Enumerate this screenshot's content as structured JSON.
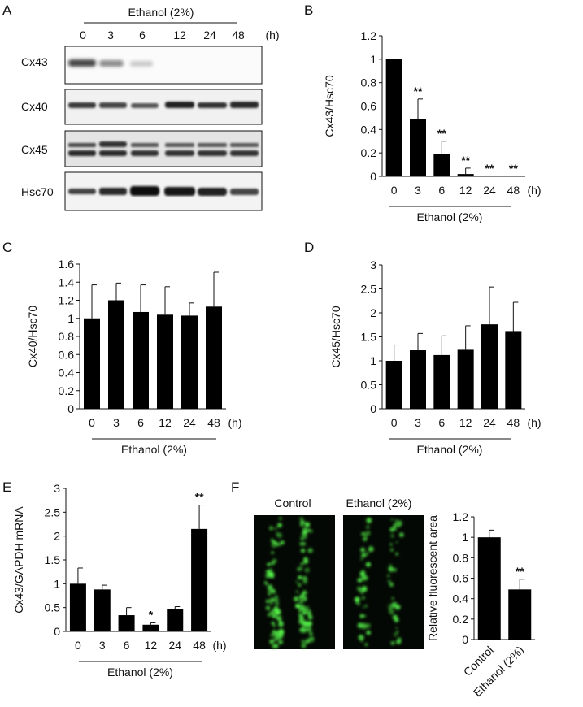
{
  "panels": {
    "A": "A",
    "B": "B",
    "C": "C",
    "D": "D",
    "E": "E",
    "F": "F"
  },
  "panelA": {
    "treatment": "Ethanol (2%)",
    "lanes": [
      "0",
      "3",
      "6",
      "12",
      "24",
      "48"
    ],
    "unit": "(h)",
    "rows": [
      "Cx43",
      "Cx40",
      "Cx45",
      "Hsc70"
    ]
  },
  "panelF": {
    "image_labels": [
      "Control",
      "Ethanol (2%)"
    ]
  },
  "chart_data": [
    {
      "id": "B",
      "type": "bar",
      "categories": [
        "0",
        "3",
        "6",
        "12",
        "24",
        "48"
      ],
      "x_unit": "(h)",
      "group_label": "Ethanol (2%)",
      "values": [
        1,
        0.49,
        0.19,
        0.02,
        0,
        0
      ],
      "errors": [
        0,
        0.17,
        0.11,
        0.05,
        0,
        0
      ],
      "significance": [
        "",
        "**",
        "**",
        "**",
        "**",
        "**"
      ],
      "ylabel": "Cx43/Hsc70",
      "ylim": [
        0,
        1.2
      ],
      "yticks": [
        "0",
        "0.2",
        "0.4",
        "0.6",
        "0.8",
        "1",
        "1.2"
      ]
    },
    {
      "id": "C",
      "type": "bar",
      "categories": [
        "0",
        "3",
        "6",
        "12",
        "24",
        "48"
      ],
      "x_unit": "(h)",
      "group_label": "Ethanol (2%)",
      "values": [
        1.0,
        1.2,
        1.07,
        1.04,
        1.03,
        1.13
      ],
      "errors": [
        0.37,
        0.19,
        0.3,
        0.31,
        0.14,
        0.38
      ],
      "significance": [
        "",
        "",
        "",
        "",
        "",
        ""
      ],
      "ylabel": "Cx40/Hsc70",
      "ylim": [
        0,
        1.6
      ],
      "yticks": [
        "0",
        "0.2",
        "0.4",
        "0.6",
        "0.8",
        "1",
        "1.2",
        "1.4",
        "1.6"
      ]
    },
    {
      "id": "D",
      "type": "bar",
      "categories": [
        "0",
        "3",
        "6",
        "12",
        "24",
        "48"
      ],
      "x_unit": "(h)",
      "group_label": "Ethanol (2%)",
      "values": [
        1.0,
        1.22,
        1.12,
        1.23,
        1.76,
        1.62
      ],
      "errors": [
        0.33,
        0.35,
        0.4,
        0.5,
        0.78,
        0.6
      ],
      "significance": [
        "",
        "",
        "",
        "",
        "",
        ""
      ],
      "ylabel": "Cx45/Hsc70",
      "ylim": [
        0,
        3
      ],
      "yticks": [
        "0",
        "0.5",
        "1",
        "1.5",
        "2",
        "2.5",
        "3"
      ]
    },
    {
      "id": "E",
      "type": "bar",
      "categories": [
        "0",
        "3",
        "6",
        "12",
        "24",
        "48"
      ],
      "x_unit": "(h)",
      "group_label": "Ethanol (2%)",
      "values": [
        1.0,
        0.88,
        0.34,
        0.14,
        0.46,
        2.15
      ],
      "errors": [
        0.33,
        0.09,
        0.16,
        0.04,
        0.06,
        0.5
      ],
      "significance": [
        "",
        "",
        "",
        "*",
        "",
        "**"
      ],
      "ylabel": "Cx43/GAPDH mRNA",
      "ylim": [
        0,
        3
      ],
      "yticks": [
        "0",
        "0.5",
        "1",
        "1.5",
        "2",
        "2.5",
        "3"
      ]
    },
    {
      "id": "F",
      "type": "bar",
      "categories": [
        "Control",
        "Ethanol (2%)"
      ],
      "values": [
        1.0,
        0.49
      ],
      "errors": [
        0.07,
        0.1
      ],
      "significance": [
        "",
        "**"
      ],
      "ylabel": "Relative fluorescent area",
      "ylim": [
        0,
        1.2
      ],
      "yticks": [
        "0",
        "0.2",
        "0.4",
        "0.6",
        "0.8",
        "1",
        "1.2"
      ]
    }
  ]
}
